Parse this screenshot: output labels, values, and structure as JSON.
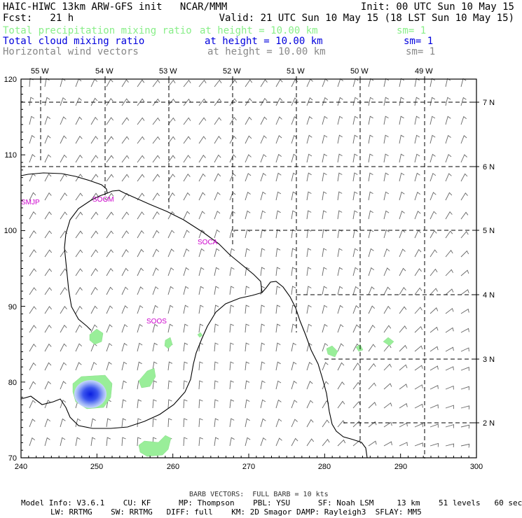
{
  "header": {
    "line1_left": "HAIC-HIWC 13km ARW-GFS init   NCAR/MMM",
    "line1_right": "Init: 00 UTC Sun 10 May 15",
    "line2_left": "Fcst:   21 h",
    "line2_right": "Valid: 21 UTC Sun 10 May 15 (18 LST Sun 10 May 15)",
    "fields": [
      {
        "name": "Total precipitation mixing ratio",
        "height": "at height = 10.00 km",
        "sm": "sm= 1",
        "color": "#88ee88"
      },
      {
        "name": "Total cloud mixing ratio",
        "height": "at height = 10.00 km",
        "sm": "sm= 1",
        "color": "#0000dd"
      },
      {
        "name": "Horizontal wind vectors",
        "height": "at height = 10.00 km",
        "sm": "sm= 1",
        "color": "#888888"
      }
    ]
  },
  "map": {
    "x_ticks": [
      "240",
      "250",
      "260",
      "270",
      "280",
      "290",
      "300"
    ],
    "y_ticks": [
      "70",
      "80",
      "90",
      "100",
      "110",
      "120"
    ],
    "lon_labels": [
      "55 W",
      "54 W",
      "53 W",
      "52 W",
      "51 W",
      "50 W",
      "49 W"
    ],
    "lat_labels": [
      "2 N",
      "3 N",
      "4 N",
      "5 N",
      "6 N",
      "7 N"
    ],
    "stations": [
      "SMJP",
      "SOGM",
      "SOCA",
      "SOOS"
    ],
    "precip_color": "#99ee99",
    "cloud_color": "#1a33ee"
  },
  "footer": {
    "barb": "BARB VECTORS:  FULL BARB = 10 kts",
    "line1": "Model Info: V3.6.1    CU: KF      MP: Thompson    PBL: YSU      SF: Noah LSM     13 km    51 levels   60 sec",
    "line2": "LW: RRTMG    SW: RRTMG   DIFF: full    KM: 2D Smagor DAMP: Rayleigh3  SFLAY: MM5"
  }
}
